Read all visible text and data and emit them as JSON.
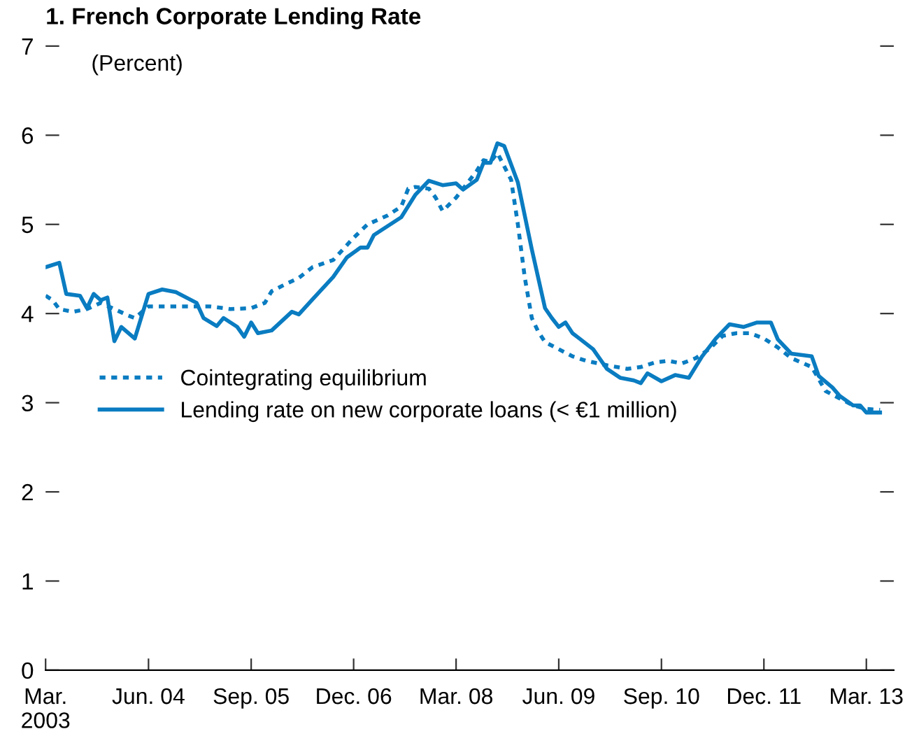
{
  "chart_data": {
    "type": "line",
    "title": "1. French Corporate Lending Rate",
    "subtitle": "(Percent)",
    "xlim": [
      "2003-03",
      "2013-07"
    ],
    "xticks": [
      {
        "value": "2003-03",
        "label": "Mar.\n2003"
      },
      {
        "value": "2004-06",
        "label": "Jun. 04"
      },
      {
        "value": "2005-09",
        "label": "Sep. 05"
      },
      {
        "value": "2006-12",
        "label": "Dec. 06"
      },
      {
        "value": "2008-03",
        "label": "Mar. 08"
      },
      {
        "value": "2009-06",
        "label": "Jun. 09"
      },
      {
        "value": "2010-09",
        "label": "Sep. 10"
      },
      {
        "value": "2011-12",
        "label": "Dec. 11"
      },
      {
        "value": "2013-03",
        "label": "Mar. 13"
      }
    ],
    "ylim": [
      0,
      7
    ],
    "yticks": [
      0,
      1,
      2,
      3,
      4,
      5,
      6,
      7
    ],
    "grid": false,
    "legend": "left",
    "series": [
      {
        "name": "Cointegrating equilibrium",
        "color": "#0a7cc1",
        "line_style": "dotted",
        "x": [
          "2003-03",
          "2003-04",
          "2003-05",
          "2003-07",
          "2003-09",
          "2003-11",
          "2004-01",
          "2004-03",
          "2004-04",
          "2004-06",
          "2004-11",
          "2005-03",
          "2005-06",
          "2005-09",
          "2005-11",
          "2005-12",
          "2006-02",
          "2006-04",
          "2006-06",
          "2006-09",
          "2006-12",
          "2007-02",
          "2007-05",
          "2007-07",
          "2007-08",
          "2007-09",
          "2007-11",
          "2007-12",
          "2008-01",
          "2008-03",
          "2008-04",
          "2008-06",
          "2008-07",
          "2008-08",
          "2008-09",
          "2008-11",
          "2008-12",
          "2009-01",
          "2009-02",
          "2009-03",
          "2009-04",
          "2009-06",
          "2009-08",
          "2009-10",
          "2010-01",
          "2010-04",
          "2010-06",
          "2010-08",
          "2010-10",
          "2010-12",
          "2011-02",
          "2011-04",
          "2011-06",
          "2011-08",
          "2011-10",
          "2011-12",
          "2012-02",
          "2012-04",
          "2012-07",
          "2012-09",
          "2012-11",
          "2013-01",
          "2013-03",
          "2013-05"
        ],
        "values": [
          4.2,
          4.15,
          4.05,
          4.02,
          4.05,
          4.12,
          4.05,
          3.98,
          3.95,
          4.08,
          4.08,
          4.08,
          4.05,
          4.06,
          4.12,
          4.25,
          4.33,
          4.4,
          4.52,
          4.6,
          4.85,
          5.0,
          5.1,
          5.2,
          5.4,
          5.42,
          5.4,
          5.3,
          5.15,
          5.3,
          5.4,
          5.6,
          5.72,
          5.7,
          5.8,
          5.5,
          5.0,
          4.4,
          3.95,
          3.8,
          3.68,
          3.6,
          3.52,
          3.47,
          3.42,
          3.38,
          3.4,
          3.45,
          3.47,
          3.44,
          3.5,
          3.6,
          3.75,
          3.78,
          3.78,
          3.72,
          3.62,
          3.5,
          3.4,
          3.13,
          3.05,
          2.97,
          2.93,
          2.92
        ]
      },
      {
        "name": "Lending rate on new corporate loans (< €1 million)",
        "color": "#0a7cc1",
        "line_style": "solid",
        "x": [
          "2003-03",
          "2003-05",
          "2003-06",
          "2003-08",
          "2003-09",
          "2003-10",
          "2003-11",
          "2003-12",
          "2004-01",
          "2004-02",
          "2004-04",
          "2004-06",
          "2004-08",
          "2004-10",
          "2005-01",
          "2005-02",
          "2005-04",
          "2005-05",
          "2005-07",
          "2005-08",
          "2005-09",
          "2005-10",
          "2005-12",
          "2006-03",
          "2006-04",
          "2006-06",
          "2006-09",
          "2006-11",
          "2007-01",
          "2007-02",
          "2007-03",
          "2007-05",
          "2007-07",
          "2007-09",
          "2007-11",
          "2008-01",
          "2008-03",
          "2008-04",
          "2008-06",
          "2008-07",
          "2008-08",
          "2008-09",
          "2008-10",
          "2008-12",
          "2009-02",
          "2009-04",
          "2009-05",
          "2009-06",
          "2009-07",
          "2009-08",
          "2009-09",
          "2009-11",
          "2010-01",
          "2010-03",
          "2010-05",
          "2010-06",
          "2010-07",
          "2010-09",
          "2010-11",
          "2011-01",
          "2011-03",
          "2011-05",
          "2011-07",
          "2011-09",
          "2011-11",
          "2012-01",
          "2012-02",
          "2012-04",
          "2012-07",
          "2012-08",
          "2012-10",
          "2012-11",
          "2013-01",
          "2013-02",
          "2013-03",
          "2013-05"
        ],
        "values": [
          4.52,
          4.57,
          4.22,
          4.2,
          4.06,
          4.22,
          4.15,
          4.18,
          3.69,
          3.85,
          3.72,
          4.22,
          4.27,
          4.24,
          4.12,
          3.95,
          3.86,
          3.95,
          3.85,
          3.74,
          3.9,
          3.78,
          3.81,
          4.02,
          3.99,
          4.16,
          4.41,
          4.63,
          4.74,
          4.74,
          4.88,
          4.98,
          5.08,
          5.33,
          5.49,
          5.44,
          5.46,
          5.39,
          5.5,
          5.69,
          5.69,
          5.91,
          5.88,
          5.47,
          4.72,
          4.06,
          3.95,
          3.85,
          3.9,
          3.78,
          3.72,
          3.6,
          3.38,
          3.28,
          3.25,
          3.22,
          3.33,
          3.24,
          3.31,
          3.28,
          3.52,
          3.72,
          3.88,
          3.85,
          3.9,
          3.9,
          3.71,
          3.55,
          3.52,
          3.3,
          3.17,
          3.08,
          2.97,
          2.97,
          2.89,
          2.89
        ]
      }
    ]
  }
}
